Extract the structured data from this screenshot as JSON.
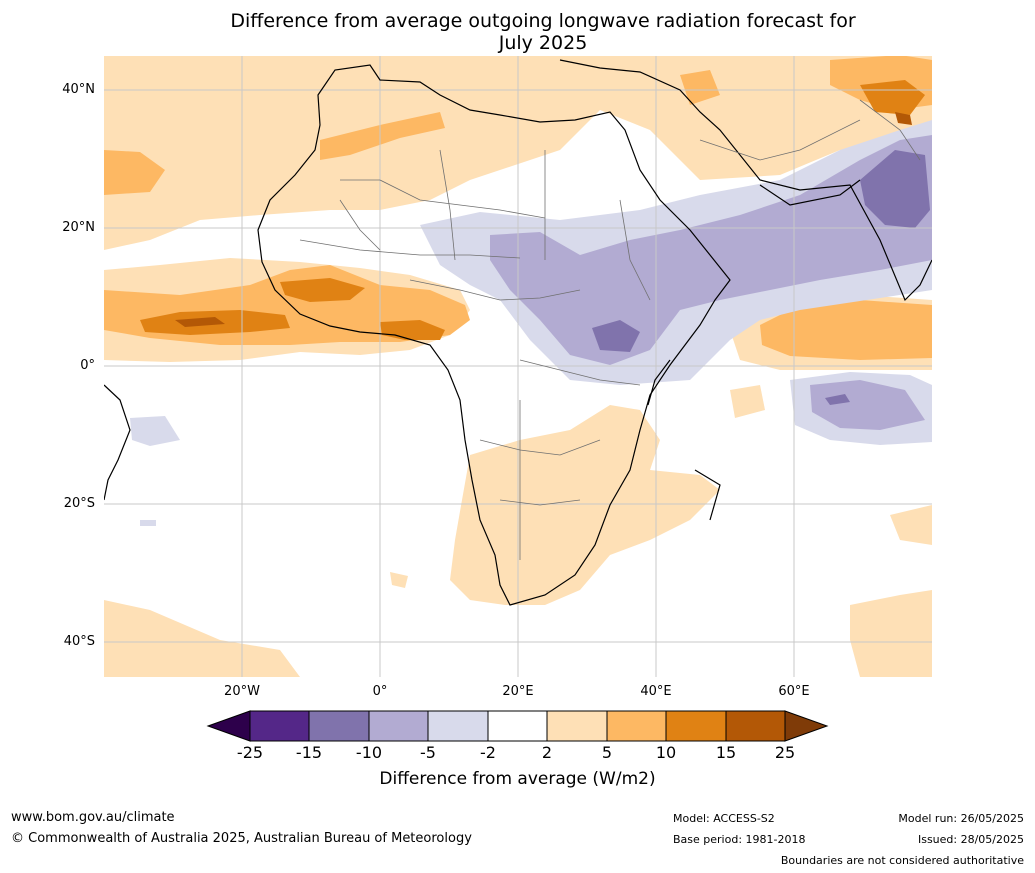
{
  "title": "Difference from average outgoing longwave radiation forecast for\nJuly 2025",
  "map": {
    "lat_labels": [
      "40°N",
      "20°N",
      "0°",
      "20°S",
      "40°S"
    ],
    "lon_labels": [
      "20°W",
      "0°",
      "20°E",
      "40°E",
      "60°E"
    ],
    "extent": {
      "lon": [
        -40,
        80
      ],
      "lat": [
        -45,
        45
      ]
    }
  },
  "colorbar": {
    "ticks": [
      "-25",
      "-15",
      "-10",
      "-5",
      "-2",
      "2",
      "5",
      "10",
      "15",
      "25"
    ],
    "colors": {
      "below": "#2d004b",
      "c1": "#542788",
      "c2": "#8073ac",
      "c3": "#b2abd2",
      "c4": "#d8daeb",
      "c5": "#ffffff",
      "c6": "#fee0b6",
      "c7": "#fdb863",
      "c8": "#e08214",
      "c9": "#b35806",
      "above": "#7f3b08"
    },
    "label": "Difference from average (W/m2)"
  },
  "footer": {
    "url": "www.bom.gov.au/climate",
    "copyright": "© Commonwealth of Australia 2025, Australian Bureau of Meteorology",
    "model": "Model: ACCESS-S2",
    "base_period": "Base period: 1981-2018",
    "model_run": "Model run: 26/05/2025",
    "issued": "Issued: 28/05/2025",
    "disclaimer": "Boundaries are not considered authoritative"
  }
}
